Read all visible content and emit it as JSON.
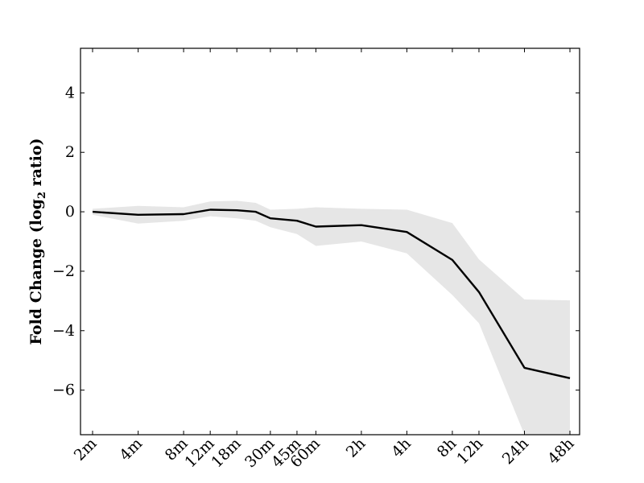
{
  "chart_data": {
    "type": "line",
    "title": "",
    "xlabel": "",
    "ylabel": "Fold Change (log",
    "ylabel_subscript": "2",
    "ylabel_suffix": " ratio)",
    "categories": [
      "2m",
      "4m",
      "8m",
      "12m",
      "18m",
      "30m",
      "45m",
      "60m",
      "2h",
      "4h",
      "8h",
      "12h",
      "24h",
      "48h"
    ],
    "x_hours": [
      0.0333,
      0.0667,
      0.1333,
      0.2,
      0.3,
      0.5,
      0.75,
      1,
      2,
      4,
      8,
      12,
      24,
      48
    ],
    "x_scale": "log",
    "ylim": [
      -7.5,
      5.5
    ],
    "yticks": [
      4,
      2,
      0,
      -2,
      -4,
      -6
    ],
    "ytick_labels": [
      "4",
      "2",
      "0",
      "−2",
      "−4",
      "−6"
    ],
    "grid": false,
    "legend": "none",
    "series": [
      {
        "x": [
          0.0333,
          0.0667,
          0.1333,
          0.2,
          0.3,
          0.4,
          0.5,
          0.75,
          1,
          2,
          4,
          8,
          12,
          24,
          48
        ],
        "values": [
          0.0,
          -0.1,
          -0.08,
          0.07,
          0.05,
          0.0,
          -0.22,
          -0.3,
          -0.5,
          -0.45,
          -0.68,
          -1.62,
          -2.7,
          -5.25,
          -5.6
        ],
        "lower": [
          -0.1,
          -0.4,
          -0.3,
          -0.15,
          -0.22,
          -0.3,
          -0.52,
          -0.75,
          -1.15,
          -1.0,
          -1.4,
          -2.8,
          -3.75,
          -7.5,
          -7.5
        ],
        "upper": [
          0.1,
          0.2,
          0.15,
          0.35,
          0.37,
          0.3,
          0.07,
          0.1,
          0.15,
          0.1,
          0.07,
          -0.38,
          -1.6,
          -2.95,
          -2.98
        ],
        "color": "#000000",
        "band_color": "#e6e6e6"
      }
    ]
  }
}
